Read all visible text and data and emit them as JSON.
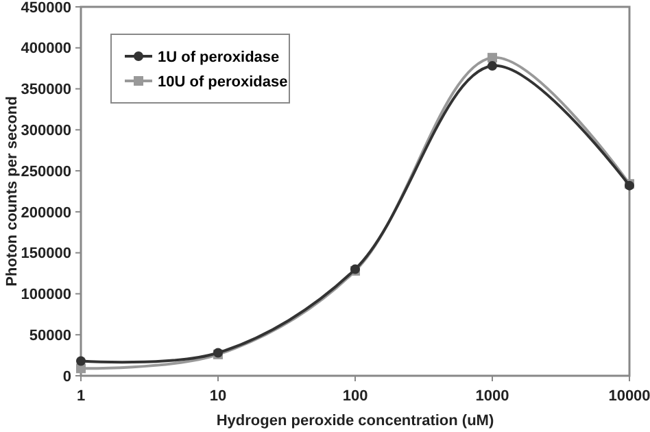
{
  "chart_data": {
    "type": "line",
    "xlabel": "Hydrogen peroxide concentration (uM)",
    "ylabel": "Photon counts per second",
    "x": [
      1,
      10,
      100,
      1000,
      10000
    ],
    "series": [
      {
        "name": "1U of peroxidase",
        "color": "#333333",
        "marker": "circle",
        "values": [
          18000,
          28000,
          130000,
          378000,
          232000
        ]
      },
      {
        "name": "10U of peroxidase",
        "color": "#999999",
        "marker": "square",
        "values": [
          9000,
          26000,
          128000,
          388000,
          234000
        ]
      }
    ],
    "log": "x",
    "xlim": [
      1,
      10000
    ],
    "xticks": [
      1,
      10,
      100,
      1000,
      10000
    ],
    "ylim": [
      0,
      450000
    ],
    "yticks": [
      0,
      50000,
      100000,
      150000,
      200000,
      250000,
      300000,
      350000,
      400000,
      450000
    ],
    "grid": false,
    "legend": "top left"
  }
}
